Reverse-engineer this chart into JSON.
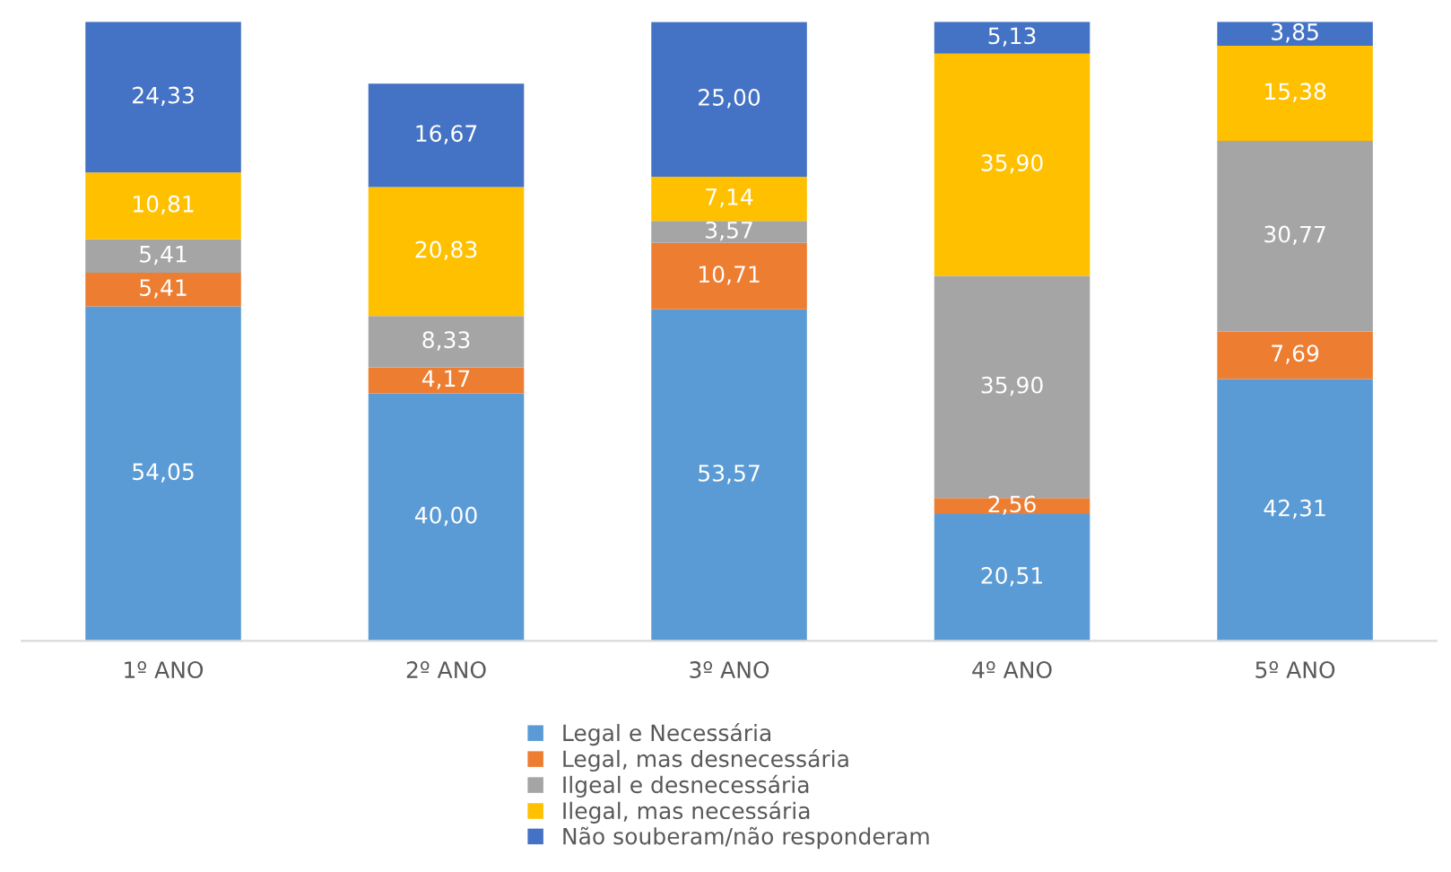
{
  "chart_data": {
    "type": "bar",
    "stacked": true,
    "legend": "bottom",
    "grid": false,
    "categories": [
      "1º ANO",
      "2º ANO",
      "3º ANO",
      "4º ANO",
      "5º ANO"
    ],
    "series": [
      {
        "name": "Legal e Necessária",
        "color": "#5b9bd5",
        "values": [
          54.05,
          40.0,
          53.57,
          20.51,
          42.31
        ],
        "value_labels": [
          "54,05",
          "40,00",
          "53,57",
          "20,51",
          "42,31"
        ]
      },
      {
        "name": "Legal, mas desnecessária",
        "color": "#ed7d31",
        "values": [
          5.41,
          4.17,
          10.71,
          2.56,
          7.69
        ],
        "value_labels": [
          "5,41",
          "4,17",
          "10,71",
          "2,56",
          "7,69"
        ]
      },
      {
        "name": "Ilgeal e desnecessária",
        "color": "#a5a5a5",
        "values": [
          5.41,
          8.33,
          3.57,
          35.9,
          30.77
        ],
        "value_labels": [
          "5,41",
          "8,33",
          "3,57",
          "35,90",
          "30,77"
        ]
      },
      {
        "name": "Ilegal, mas necessária",
        "color": "#ffc000",
        "values": [
          10.81,
          20.83,
          7.14,
          35.9,
          15.38
        ],
        "value_labels": [
          "10,81",
          "20,83",
          "7,14",
          "35,90",
          "15,38"
        ]
      },
      {
        "name": "Não souberam/não responderam",
        "color": "#4472c4",
        "values": [
          24.33,
          16.67,
          25.0,
          5.13,
          3.85
        ],
        "value_labels": [
          "24,33",
          "16,67",
          "25,00",
          "5,13",
          "3,85"
        ]
      }
    ]
  }
}
